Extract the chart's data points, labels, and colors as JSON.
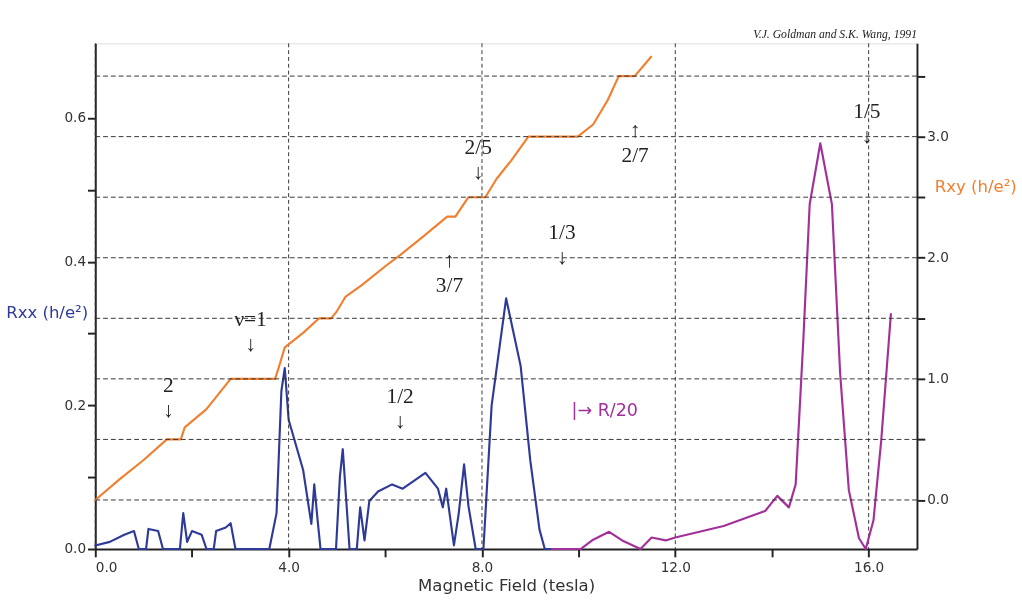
{
  "chart_data": {
    "type": "line",
    "xlabel": "Magnetic Field (tesla)",
    "ylabel": "Rxx (h/e²)",
    "y2label": "Rxy (h/e²)",
    "series": [
      {
        "color": "#2e3a98",
        "axis": "y",
        "x": [
          0,
          0.3,
          0.6,
          0.8,
          0.9,
          1.05,
          1.1,
          1.3,
          1.4,
          1.75,
          1.82,
          1.9,
          2.0,
          2.2,
          2.3,
          2.45,
          2.5,
          2.7,
          2.8,
          2.9,
          3.6,
          3.75,
          3.85,
          3.92,
          4.0,
          4.3,
          4.47,
          4.53,
          4.6,
          4.66,
          4.98,
          5.06,
          5.12,
          5.2,
          5.26,
          5.41,
          5.48,
          5.57,
          5.67,
          5.85,
          6.14,
          6.36,
          6.83,
          7.09,
          7.19,
          7.26,
          7.42,
          7.52,
          7.63,
          7.72,
          7.87,
          8.03,
          8.2,
          8.5,
          8.8,
          9.0,
          9.19,
          9.3,
          9.45
        ],
        "values": [
          0.005,
          0.01,
          0.02,
          0.025,
          0.0,
          0.0,
          0.028,
          0.025,
          0.0,
          0.0,
          0.05,
          0.01,
          0.025,
          0.02,
          0.0,
          0.0,
          0.025,
          0.03,
          0.036,
          0.0,
          0.0,
          0.05,
          0.22,
          0.252,
          0.18,
          0.11,
          0.035,
          0.09,
          0.04,
          0.0,
          0.0,
          0.1,
          0.139,
          0.06,
          0.0,
          0.0,
          0.058,
          0.012,
          0.067,
          0.08,
          0.09,
          0.084,
          0.106,
          0.084,
          0.058,
          0.084,
          0.005,
          0.05,
          0.118,
          0.06,
          0.0,
          0.0,
          0.2,
          0.349,
          0.255,
          0.123,
          0.027,
          0.0,
          0.0
        ]
      },
      {
        "color": "#a2309a",
        "axis": "y",
        "x": [
          9.45,
          10.04,
          10.3,
          10.63,
          10.9,
          11.28,
          11.51,
          11.8,
          12.0,
          13.0,
          13.86,
          14.11,
          14.35,
          14.49,
          14.65,
          14.78,
          15.0,
          15.24,
          15.41,
          15.59,
          15.8,
          15.94,
          16.1,
          16.26,
          16.46
        ],
        "values": [
          0,
          0,
          0.013,
          0.024,
          0.012,
          0.0,
          0.016,
          0.012,
          0.016,
          0.032,
          0.053,
          0.074,
          0.058,
          0.09,
          0.293,
          0.48,
          0.565,
          0.48,
          0.245,
          0.082,
          0.015,
          0.0,
          0.04,
          0.151,
          0.327
        ]
      },
      {
        "color": "#f08030",
        "axis": "y2",
        "x": [
          0,
          0.5,
          1.0,
          1.48,
          1.77,
          1.85,
          2.3,
          2.8,
          3.72,
          3.8,
          3.92,
          4.3,
          4.63,
          4.88,
          5.0,
          5.18,
          5.5,
          6.0,
          6.3,
          6.8,
          7.28,
          7.45,
          7.55,
          7.72,
          8.07,
          8.3,
          8.6,
          8.96,
          9.98,
          10.3,
          10.6,
          10.83,
          11.16,
          11.5
        ],
        "values": [
          0,
          0.17,
          0.33,
          0.5,
          0.5,
          0.6,
          0.75,
          1.0,
          1.0,
          1.1,
          1.26,
          1.38,
          1.5,
          1.5,
          1.56,
          1.68,
          1.77,
          1.93,
          2.02,
          2.18,
          2.34,
          2.34,
          2.4,
          2.5,
          2.5,
          2.65,
          2.8,
          3.0,
          3.0,
          3.1,
          3.3,
          3.5,
          3.5,
          3.66
        ]
      }
    ],
    "xlim": [
      0,
      17
    ],
    "ylim": [
      0,
      0.704
    ],
    "y2lim": [
      -0.405,
      3.77
    ],
    "xticks": [
      {
        "value": 0,
        "label": "0.0"
      },
      {
        "value": 2,
        "label": null
      },
      {
        "value": 4,
        "label": "4.0"
      },
      {
        "value": 6,
        "label": null
      },
      {
        "value": 8,
        "label": "8.0"
      },
      {
        "value": 10,
        "label": null
      },
      {
        "value": 12,
        "label": "12.0"
      },
      {
        "value": 14,
        "label": null
      },
      {
        "value": 16,
        "label": "16.0"
      }
    ],
    "yticks": [
      {
        "value": 0,
        "label": "0.0"
      },
      {
        "value": 0.1,
        "label": null
      },
      0.2,
      {
        "value": 0.3,
        "label": null
      },
      0.4,
      {
        "value": 0.5,
        "label": null
      },
      0.6
    ],
    "y2ticks": [
      {
        "value": 0,
        "label": "0.0"
      },
      {
        "value": 0.5,
        "label": null
      },
      {
        "value": 1,
        "label": "1.0"
      },
      {
        "value": 1.5,
        "label": null
      },
      {
        "value": 2,
        "label": "2.0"
      },
      {
        "value": 2.5,
        "label": null
      },
      {
        "value": 3,
        "label": "3.0"
      },
      {
        "value": 3.5,
        "label": null
      }
    ],
    "grid": "x",
    "ref_lines": [
      {
        "axis": "y2",
        "value": 0,
        "line_style": "dashed"
      },
      {
        "axis": "y2",
        "value": 0.5,
        "line_style": "dashed"
      },
      {
        "axis": "y2",
        "value": 1.0,
        "line_style": "dashed"
      },
      {
        "axis": "y2",
        "value": 1.5,
        "line_style": "dashed"
      },
      {
        "axis": "y2",
        "value": 2.0,
        "line_style": "dashed"
      },
      {
        "axis": "y2",
        "value": 2.5,
        "line_style": "dashed"
      },
      {
        "axis": "y2",
        "value": 3.0,
        "line_style": "dashed"
      },
      {
        "axis": "y2",
        "value": 3.5,
        "line_style": "dashed"
      }
    ],
    "annotations": [
      "V.J. Goldman and S.K. Wang, 1991",
      "2\n↓",
      "ν=1\n↓",
      "1/2\n↓",
      "↑\n3/7",
      "2/5\n↓",
      "1/3\n↓",
      "↑\n2/7",
      "1/5\n↓",
      "|→ R/20"
    ],
    "legend": false,
    "marker": "none",
    "line_style": "solid"
  }
}
